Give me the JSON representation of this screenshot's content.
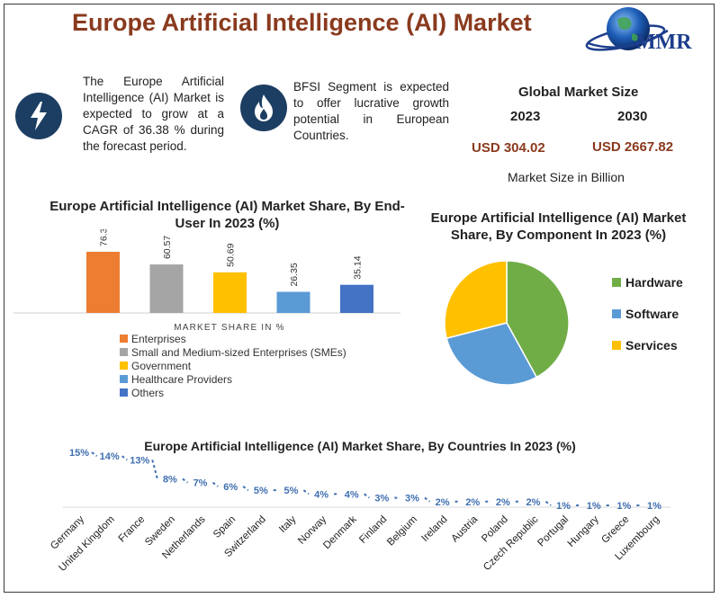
{
  "title": "Europe Artificial Intelligence (AI) Market",
  "logo_text": "MMR",
  "info_cagr": "The Europe Artificial Intelligence (AI) Market is expected to grow at a CAGR of 36.38 % during the forecast period.",
  "info_bfsi": "BFSI Segment is expected to offer lucrative growth potential in European Countries.",
  "global_market": {
    "title": "Global Market Size",
    "year_a": "2023",
    "year_b": "2030",
    "value_a": "USD 304.02",
    "value_b": "USD 2667.82",
    "unit_note": "Market Size in Billion"
  },
  "colors": {
    "brown": "#8a3a1e",
    "navy": "#1d3e63",
    "dots": "#3f6fb0"
  },
  "icons": {
    "cagr": "lightning-bolt",
    "bfsi": "flame"
  },
  "chart_data": [
    {
      "type": "bar",
      "title": "Europe Artificial Intelligence (AI) Market Share, By End-User In 2023 (%)",
      "xlabel": "MARKET SHARE IN %",
      "categories": [
        "Enterprises",
        "Small and Medium-sized Enterprises (SMEs)",
        "Government",
        "Healthcare Providers",
        "Others"
      ],
      "values": [
        76.36,
        60.57,
        50.69,
        26.35,
        35.14
      ],
      "labels": [
        "76.36",
        "60.57",
        "50.69",
        "26.35",
        "35.14"
      ],
      "colors": [
        "#ed7d31",
        "#a5a5a5",
        "#ffc000",
        "#5b9bd5",
        "#4472c4"
      ],
      "ylim": [
        0,
        90
      ],
      "legend_position": "bottom"
    },
    {
      "type": "pie",
      "title": "Europe Artificial Intelligence (AI) Market Share, By Component In 2023 (%)",
      "categories": [
        "Hardware",
        "Software",
        "Services"
      ],
      "values": [
        42,
        29,
        29
      ],
      "colors": [
        "#70ad47",
        "#5b9bd5",
        "#ffc000"
      ],
      "legend_position": "right"
    },
    {
      "type": "line",
      "title": "Europe Artificial Intelligence (AI) Market Share, By Countries In 2023 (%)",
      "categories": [
        "Germany",
        "United Kingdom",
        "France",
        "Sweden",
        "Netherlands",
        "Spain",
        "Switzerland",
        "Italy",
        "Norway",
        "Denmark",
        "Finland",
        "Belgium",
        "Ireland",
        "Austria",
        "Poland",
        "Czech Republic",
        "Portugal",
        "Hungary",
        "Greece",
        "Luxembourg"
      ],
      "values": [
        15,
        14,
        13,
        8,
        7,
        6,
        5,
        5,
        4,
        4,
        3,
        3,
        2,
        2,
        2,
        2,
        1,
        1,
        1,
        1
      ],
      "labels": [
        "15%",
        "14%",
        "13%",
        "8%",
        "7%",
        "6%",
        "5%",
        "5%",
        "4%",
        "4%",
        "3%",
        "3%",
        "2%",
        "2%",
        "2%",
        "2%",
        "1%",
        "1%",
        "1%",
        "1%"
      ],
      "ylim": [
        0,
        16
      ],
      "line_style": "dotted"
    }
  ]
}
